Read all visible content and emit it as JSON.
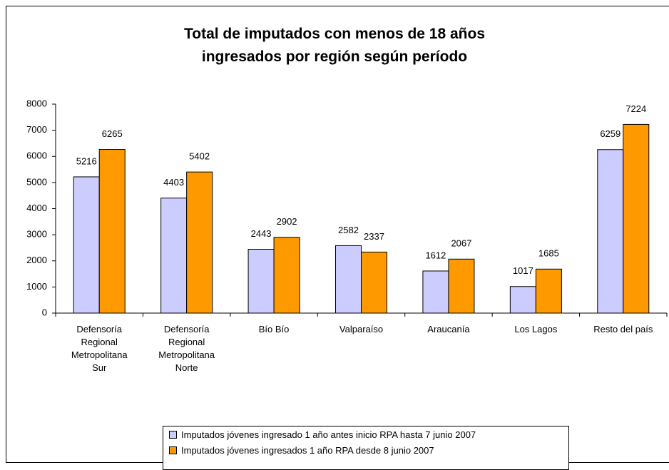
{
  "chart_data": {
    "type": "bar",
    "title": "Total de imputados con menos de 18 años ingresados por región según período",
    "categories": [
      "Defensoría Regional Metropolitana Sur",
      "Defensoría Regional Metropolitana Norte",
      "Bío Bío",
      "Valparaíso",
      "Araucanía",
      "Los Lagos",
      "Resto del país"
    ],
    "series": [
      {
        "name": "Imputados jóvenes ingresado 1 año antes inicio RPA hasta 7 junio 2007",
        "color": "#ccccff",
        "values": [
          5216,
          4403,
          2443,
          2582,
          1612,
          1017,
          6259
        ]
      },
      {
        "name": "Imputados jóvenes ingresados 1 año RPA desde 8 junio 2007",
        "color": "#ff9900",
        "values": [
          6265,
          5402,
          2902,
          2337,
          2067,
          1685,
          7224
        ]
      }
    ],
    "ylim": [
      0,
      8000
    ],
    "yticks": [
      0,
      1000,
      2000,
      3000,
      4000,
      5000,
      6000,
      7000,
      8000
    ],
    "grid": false
  }
}
